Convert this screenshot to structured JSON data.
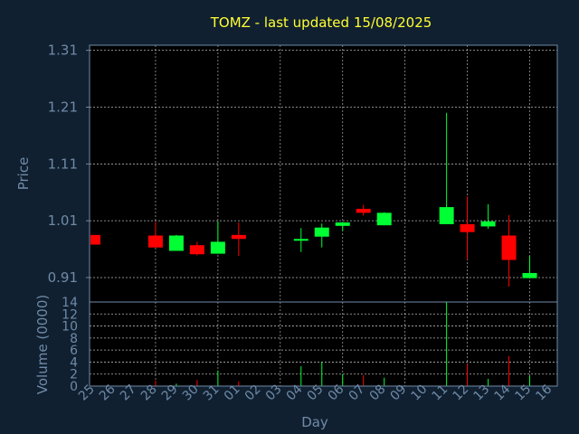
{
  "chart_data": {
    "type": "candlestick",
    "title": "TOMZ - last updated 15/08/2025",
    "xlabel": "Day",
    "colors": {
      "background": "#102030",
      "plot_background": "#000000",
      "up": "#00ff33",
      "down": "#ff0000",
      "grid": "#ffffff",
      "axis_text": "#6f8aa7",
      "title": "#ffff33"
    },
    "price_panel": {
      "ylabel": "Price",
      "ylim": [
        0.867,
        1.319
      ],
      "yticks": [
        "1.31",
        "1.21",
        "1.11",
        "1.01",
        "0.91"
      ],
      "ytick_values": [
        1.31,
        1.21,
        1.11,
        1.01,
        0.91
      ],
      "grid": true
    },
    "volume_panel": {
      "ylabel": "Volume (0000)",
      "ylim": [
        0,
        14
      ],
      "yticks": [
        "14",
        "12",
        "10",
        "8",
        "6",
        "4",
        "2",
        "0"
      ],
      "ytick_values": [
        14,
        12,
        10,
        8,
        6,
        4,
        2,
        0
      ],
      "grid": true
    },
    "x_categories": [
      "25",
      "26",
      "27",
      "28",
      "29",
      "30",
      "31",
      "01",
      "02",
      "03",
      "04",
      "05",
      "06",
      "07",
      "08",
      "09",
      "10",
      "11",
      "12",
      "13",
      "14",
      "15",
      "16"
    ],
    "candles": [
      {
        "day": "25",
        "open": 0.985,
        "high": 0.985,
        "low": 0.968,
        "close": 0.968,
        "volume": 0
      },
      {
        "day": "28",
        "open": 0.984,
        "high": 1.008,
        "low": 0.962,
        "close": 0.963,
        "volume": 0.9
      },
      {
        "day": "29",
        "open": 0.957,
        "high": 0.985,
        "low": 0.957,
        "close": 0.984,
        "volume": 0.4
      },
      {
        "day": "30",
        "open": 0.967,
        "high": 0.973,
        "low": 0.949,
        "close": 0.951,
        "volume": 1.0
      },
      {
        "day": "31",
        "open": 0.952,
        "high": 1.009,
        "low": 0.952,
        "close": 0.973,
        "volume": 2.6
      },
      {
        "day": "01",
        "open": 0.985,
        "high": 1.007,
        "low": 0.948,
        "close": 0.978,
        "volume": 0.8
      },
      {
        "day": "04",
        "open": 0.975,
        "high": 0.997,
        "low": 0.955,
        "close": 0.978,
        "volume": 3.3
      },
      {
        "day": "05",
        "open": 0.982,
        "high": 1.005,
        "low": 0.963,
        "close": 0.998,
        "volume": 4.0
      },
      {
        "day": "06",
        "open": 1.001,
        "high": 1.008,
        "low": 0.992,
        "close": 1.007,
        "volume": 2.0
      },
      {
        "day": "07",
        "open": 1.031,
        "high": 1.038,
        "low": 1.019,
        "close": 1.024,
        "volume": 1.8
      },
      {
        "day": "08",
        "open": 1.002,
        "high": 1.025,
        "low": 1.002,
        "close": 1.024,
        "volume": 1.4
      },
      {
        "day": "11",
        "open": 1.004,
        "high": 1.2,
        "low": 1.004,
        "close": 1.034,
        "volume": 14.0
      },
      {
        "day": "12",
        "open": 1.004,
        "high": 1.053,
        "low": 0.942,
        "close": 0.99,
        "volume": 3.7
      },
      {
        "day": "13",
        "open": 1.0,
        "high": 1.039,
        "low": 0.996,
        "close": 1.009,
        "volume": 1.2
      },
      {
        "day": "14",
        "open": 0.984,
        "high": 1.02,
        "low": 0.894,
        "close": 0.941,
        "volume": 5.0
      },
      {
        "day": "15",
        "open": 0.909,
        "high": 0.948,
        "low": 0.909,
        "close": 0.918,
        "volume": 1.7
      }
    ]
  }
}
